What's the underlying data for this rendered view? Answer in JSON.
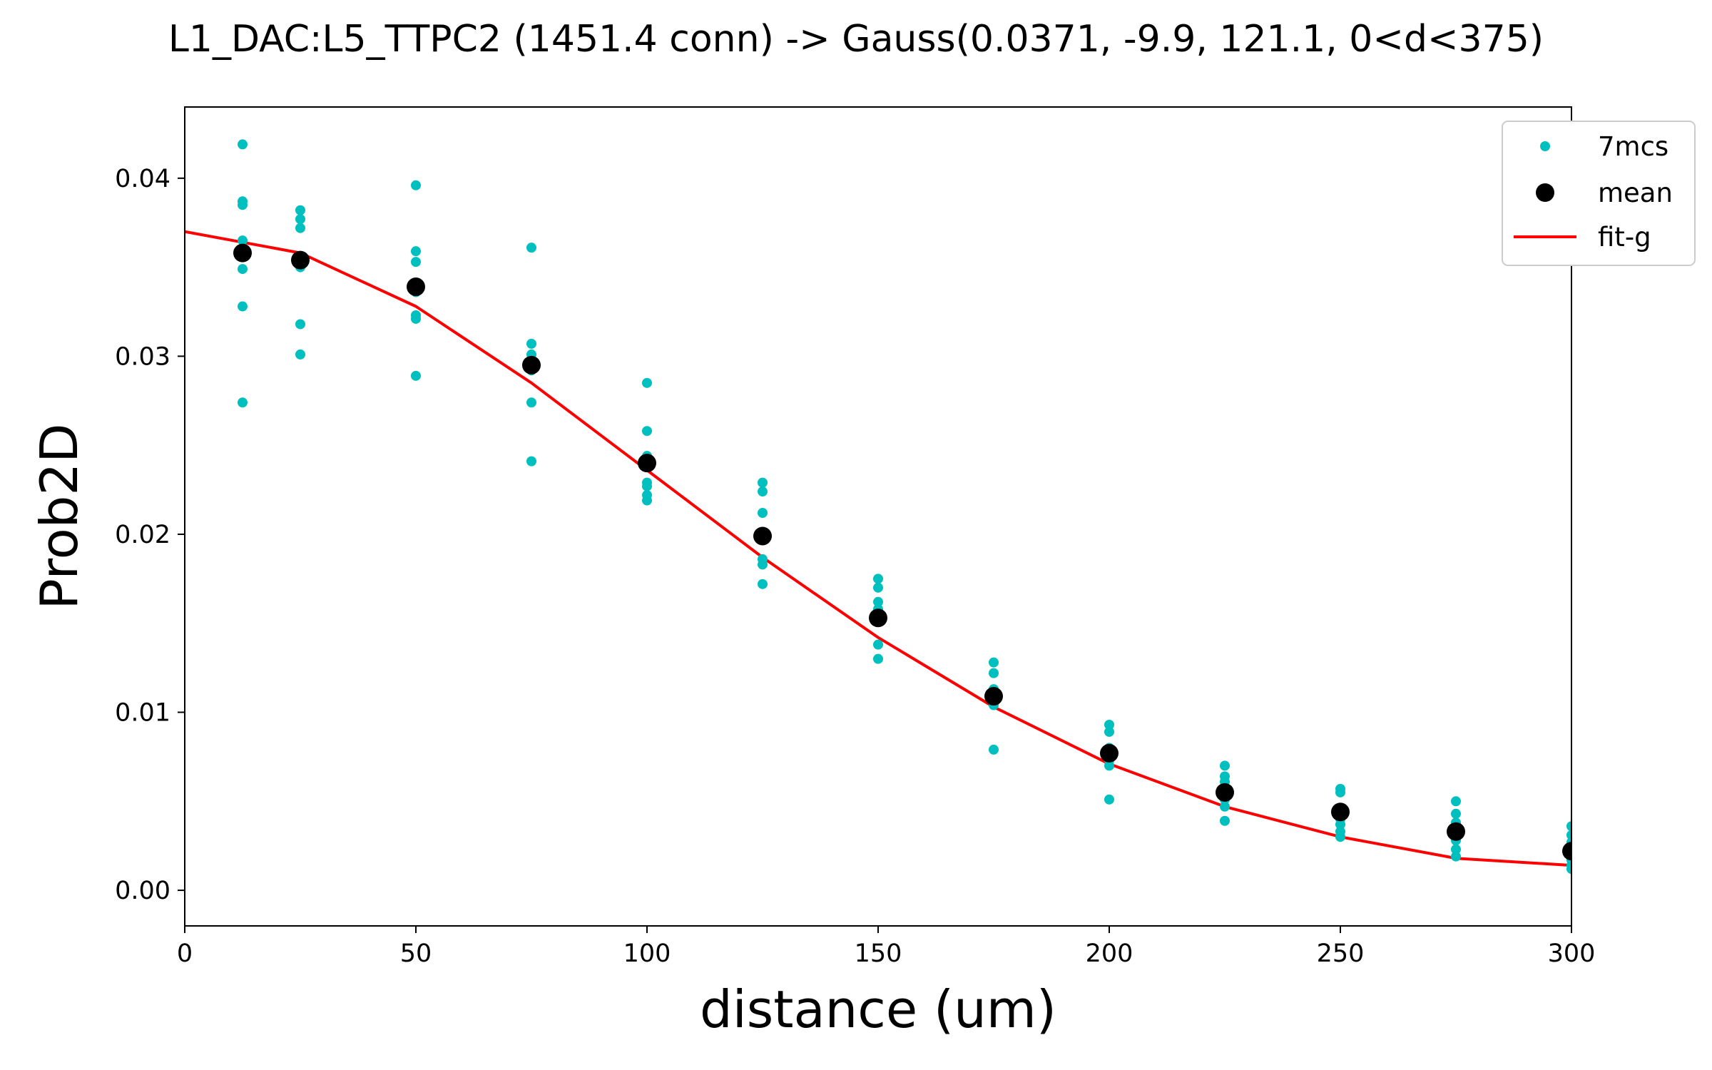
{
  "chart_data": {
    "type": "scatter",
    "title": "L1_DAC:L5_TTPC2 (1451.4 conn) -> Gauss(0.0371, -9.9, 121.1, 0<d<375)",
    "xlabel": "distance (um)",
    "ylabel": "Prob2D",
    "xlim": [
      0,
      300
    ],
    "ylim": [
      -0.002,
      0.044
    ],
    "xticks": [
      0,
      50,
      100,
      150,
      200,
      250,
      300
    ],
    "xtick_labels": [
      "0",
      "50",
      "100",
      "150",
      "200",
      "250",
      "300"
    ],
    "yticks": [
      0.0,
      0.01,
      0.02,
      0.03,
      0.04
    ],
    "ytick_labels": [
      "0.00",
      "0.01",
      "0.02",
      "0.03",
      "0.04"
    ],
    "grid": false,
    "legend_position": "top-right",
    "legend": [
      "7mcs",
      "mean",
      "fit-g"
    ],
    "series": [
      {
        "name": "7mcs",
        "kind": "points",
        "color": "#00bfbf",
        "points": [
          [
            12.5,
            0.0419
          ],
          [
            12.5,
            0.0387
          ],
          [
            12.5,
            0.0385
          ],
          [
            12.5,
            0.0365
          ],
          [
            12.5,
            0.0349
          ],
          [
            12.5,
            0.0328
          ],
          [
            12.5,
            0.0274
          ],
          [
            25,
            0.0382
          ],
          [
            25,
            0.0377
          ],
          [
            25,
            0.0372
          ],
          [
            25,
            0.0355
          ],
          [
            25,
            0.035
          ],
          [
            25,
            0.0318
          ],
          [
            25,
            0.0301
          ],
          [
            50,
            0.0396
          ],
          [
            50,
            0.0359
          ],
          [
            50,
            0.0353
          ],
          [
            50,
            0.0336
          ],
          [
            50,
            0.0323
          ],
          [
            50,
            0.0321
          ],
          [
            50,
            0.0289
          ],
          [
            75,
            0.0361
          ],
          [
            75,
            0.0307
          ],
          [
            75,
            0.0301
          ],
          [
            75,
            0.0292
          ],
          [
            75,
            0.0274
          ],
          [
            75,
            0.0241
          ],
          [
            100,
            0.0285
          ],
          [
            100,
            0.0258
          ],
          [
            100,
            0.0244
          ],
          [
            100,
            0.0229
          ],
          [
            100,
            0.0227
          ],
          [
            100,
            0.0222
          ],
          [
            100,
            0.0219
          ],
          [
            125,
            0.0229
          ],
          [
            125,
            0.0224
          ],
          [
            125,
            0.0212
          ],
          [
            125,
            0.0197
          ],
          [
            125,
            0.0186
          ],
          [
            125,
            0.0183
          ],
          [
            125,
            0.0172
          ],
          [
            150,
            0.0175
          ],
          [
            150,
            0.017
          ],
          [
            150,
            0.0162
          ],
          [
            150,
            0.0158
          ],
          [
            150,
            0.0154
          ],
          [
            150,
            0.0138
          ],
          [
            150,
            0.013
          ],
          [
            175,
            0.0128
          ],
          [
            175,
            0.0122
          ],
          [
            175,
            0.0113
          ],
          [
            175,
            0.0108
          ],
          [
            175,
            0.0104
          ],
          [
            175,
            0.0079
          ],
          [
            200,
            0.0093
          ],
          [
            200,
            0.0089
          ],
          [
            200,
            0.008
          ],
          [
            200,
            0.0077
          ],
          [
            200,
            0.0073
          ],
          [
            200,
            0.007
          ],
          [
            200,
            0.0051
          ],
          [
            225,
            0.007
          ],
          [
            225,
            0.0064
          ],
          [
            225,
            0.0061
          ],
          [
            225,
            0.0057
          ],
          [
            225,
            0.0051
          ],
          [
            225,
            0.0047
          ],
          [
            225,
            0.0039
          ],
          [
            250,
            0.0057
          ],
          [
            250,
            0.0055
          ],
          [
            250,
            0.0044
          ],
          [
            250,
            0.004
          ],
          [
            250,
            0.0037
          ],
          [
            250,
            0.0033
          ],
          [
            250,
            0.003
          ],
          [
            275,
            0.005
          ],
          [
            275,
            0.0043
          ],
          [
            275,
            0.0038
          ],
          [
            275,
            0.0034
          ],
          [
            275,
            0.0028
          ],
          [
            275,
            0.0023
          ],
          [
            275,
            0.0019
          ],
          [
            300,
            0.0036
          ],
          [
            300,
            0.0031
          ],
          [
            300,
            0.0027
          ],
          [
            300,
            0.0021
          ],
          [
            300,
            0.0017
          ],
          [
            300,
            0.0014
          ],
          [
            300,
            0.0012
          ]
        ]
      },
      {
        "name": "mean",
        "kind": "points",
        "color": "#000000",
        "x": [
          12.5,
          25,
          50,
          75,
          100,
          125,
          150,
          175,
          200,
          225,
          250,
          275,
          300
        ],
        "y": [
          0.0358,
          0.0354,
          0.0339,
          0.0295,
          0.024,
          0.0199,
          0.0153,
          0.0109,
          0.0077,
          0.0055,
          0.0044,
          0.0033,
          0.0022
        ]
      },
      {
        "name": "fit-g",
        "kind": "line",
        "color": "#ff0000",
        "x": [
          0,
          25,
          50,
          75,
          100,
          125,
          150,
          175,
          200,
          225,
          250,
          275,
          300
        ],
        "y": [
          0.037,
          0.0358,
          0.0328,
          0.0285,
          0.0236,
          0.0187,
          0.0142,
          0.0103,
          0.0071,
          0.0047,
          0.003,
          0.0018,
          0.0014
        ]
      }
    ]
  }
}
